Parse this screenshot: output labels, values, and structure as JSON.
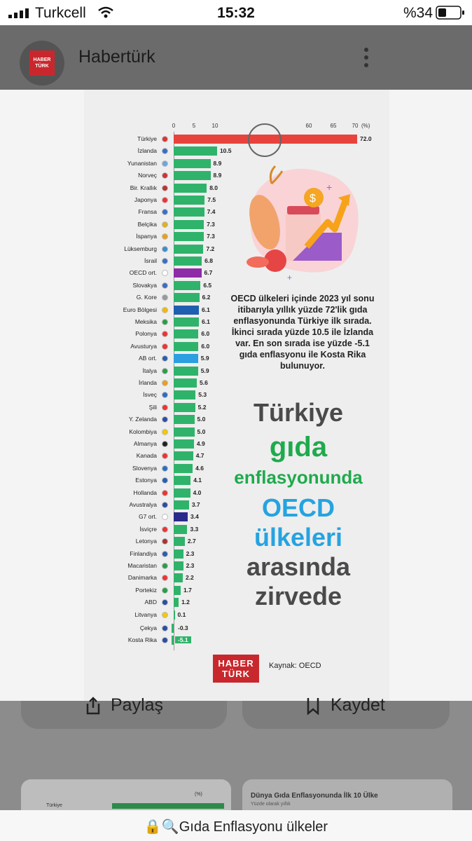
{
  "status_bar": {
    "carrier": "Turkcell",
    "time": "15:32",
    "battery": "%34"
  },
  "app_bar": {
    "title": "Habertürk",
    "logo_text": "HABER TÜRK"
  },
  "infographic": {
    "axis_unit": "(%)",
    "axis_ticks": [
      "0",
      "5",
      "10",
      "60",
      "65",
      "70"
    ],
    "description": "OECD ülkeleri içinde 2023 yıl sonu itibarıyla yıllık yüzde 72'lik gıda enflasyonunda Türkiye ilk sırada. İkinci sırada yüzde 10.5 ile İzlanda var. En son sırada ise yüzde -5.1 gıda enflasyonu ile Kosta Rika bulunuyor.",
    "headline": [
      "Türkiye",
      "gıda",
      "enflasyonunda",
      "OECD",
      "ülkeleri",
      "arasında",
      "zirvede"
    ],
    "source": "Kaynak: OECD",
    "logo_text": [
      "HABER",
      "TÜRK"
    ],
    "colors": {
      "turkey": "#e8423d",
      "default": "#2fb36b",
      "oecd": "#8e2ca8",
      "euro": "#1f5fb0",
      "eu": "#2b9fe0",
      "g7": "#2a2a8c"
    }
  },
  "chart_data": {
    "type": "bar",
    "orientation": "horizontal",
    "axis_break": [
      10,
      60
    ],
    "categories": [
      "Türkiye",
      "İzlanda",
      "Yunanistan",
      "Norveç",
      "Bir. Krallık",
      "Japonya",
      "Fransa",
      "Belçika",
      "İspanya",
      "Lüksemburg",
      "İsrail",
      "OECD ort.",
      "Slovakya",
      "G. Kore",
      "Euro Bölgesi",
      "Meksika",
      "Polonya",
      "Avusturya",
      "AB ort.",
      "İtalya",
      "İrlanda",
      "İsveç",
      "Şili",
      "Y. Zelanda",
      "Kolombiya",
      "Almanya",
      "Kanada",
      "Slovenya",
      "Estonya",
      "Hollanda",
      "Avustralya",
      "G7 ort.",
      "İsviçre",
      "Letonya",
      "Finlandiya",
      "Macaristan",
      "Danimarka",
      "Portekiz",
      "ABD",
      "Litvanya",
      "Çekya",
      "Kosta Rika"
    ],
    "values": [
      72.0,
      10.5,
      8.9,
      8.9,
      8.0,
      7.5,
      7.4,
      7.3,
      7.3,
      7.2,
      6.8,
      6.7,
      6.5,
      6.2,
      6.1,
      6.1,
      6.0,
      6.0,
      5.9,
      5.9,
      5.6,
      5.3,
      5.2,
      5.0,
      5.0,
      4.9,
      4.7,
      4.6,
      4.1,
      4.0,
      3.7,
      3.4,
      3.3,
      2.7,
      2.3,
      2.3,
      2.2,
      1.7,
      1.2,
      0.1,
      -0.3,
      -5.1
    ],
    "value_labels": [
      "72.0",
      "10.5",
      "8.9",
      "8.9",
      "8.0",
      "7.5",
      "7.4",
      "7.3",
      "7.3",
      "7.2",
      "6.8",
      "6.7",
      "6.5",
      "6.2",
      "6.1",
      "6.1",
      "6.0",
      "6.0",
      "5.9",
      "5.9",
      "5.6",
      "5.3",
      "5.2",
      "5.0",
      "5.0",
      "4.9",
      "4.7",
      "4.6",
      "4.1",
      "4.0",
      "3.7",
      "3.4",
      "3.3",
      "2.7",
      "2.3",
      "2.3",
      "2.2",
      "1.7",
      "1.2",
      "0.1",
      "-0.3",
      "-5.1"
    ],
    "xlabel": "",
    "ylabel": "(%)"
  },
  "actions": {
    "share": "Paylaş",
    "save": "Kaydet"
  },
  "related": {
    "card2_title": "Dünya Gıda Enflasyonunda İlk 10 Ülke",
    "card2_sub": "Yüzde olarak yıllık",
    "card1_label": "Türkiye",
    "card1_unit": "(%)"
  },
  "url_bar": {
    "text": "Gıda Enflasyonu ülkeler"
  }
}
